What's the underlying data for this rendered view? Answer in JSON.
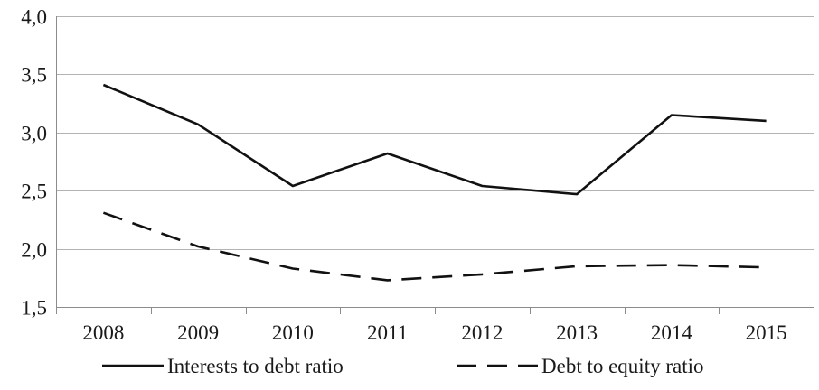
{
  "chart_data": {
    "type": "line",
    "title": "",
    "xlabel": "",
    "ylabel": "",
    "categories": [
      "2008",
      "2009",
      "2010",
      "2011",
      "2012",
      "2013",
      "2014",
      "2015"
    ],
    "ylim": [
      1.5,
      4.0
    ],
    "y_ticks": [
      1.5,
      2.0,
      2.5,
      3.0,
      3.5,
      4.0
    ],
    "y_tick_labels": [
      "1,5",
      "2,0",
      "2,5",
      "3,0",
      "3,5",
      "4,0"
    ],
    "grid": true,
    "legend_position": "bottom",
    "series": [
      {
        "name": "Interests to debt ratio",
        "style": "solid",
        "color": "#111111",
        "values": [
          3.41,
          3.07,
          2.54,
          2.82,
          2.54,
          2.47,
          3.15,
          3.1
        ]
      },
      {
        "name": "Debt to equity ratio",
        "style": "dashed",
        "color": "#111111",
        "values": [
          2.31,
          2.02,
          1.83,
          1.73,
          1.78,
          1.85,
          1.86,
          1.84
        ]
      }
    ]
  }
}
